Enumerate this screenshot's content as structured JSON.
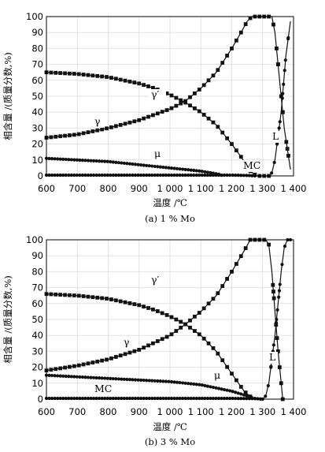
{
  "chart_data": [
    {
      "type": "line",
      "caption": "(a) 1 % Mo",
      "xlabel": "温度 /℃",
      "ylabel": "相含量 /(质量分数,%)",
      "xlim": [
        600,
        1400
      ],
      "ylim": [
        0,
        100
      ],
      "x_ticks": [
        "600",
        "700",
        "800",
        "900",
        "1 000",
        "1 100",
        "1 200",
        "1 300",
        "1 400"
      ],
      "y_ticks": [
        "0",
        "10",
        "20",
        "30",
        "40",
        "50",
        "60",
        "70",
        "80",
        "90",
        "100"
      ],
      "grid": true,
      "series": [
        {
          "name": "γ′",
          "marker": "square",
          "x": [
            600,
            700,
            800,
            900,
            950,
            1000,
            1050,
            1100,
            1150,
            1200,
            1230,
            1260,
            1280,
            1310,
            1330
          ],
          "y": [
            65,
            64,
            62,
            58,
            55,
            51,
            46,
            40,
            32,
            20,
            12,
            3,
            0,
            0,
            0
          ]
        },
        {
          "name": "γ",
          "marker": "square",
          "x": [
            600,
            700,
            800,
            900,
            1000,
            1050,
            1100,
            1150,
            1200,
            1230,
            1250,
            1265,
            1280,
            1300,
            1320,
            1330,
            1340,
            1355,
            1370,
            1390
          ],
          "y": [
            24,
            26,
            30,
            35,
            42,
            47,
            55,
            65,
            80,
            90,
            97,
            100,
            100,
            100,
            100,
            100,
            90,
            60,
            30,
            4
          ]
        },
        {
          "name": "μ",
          "marker": "circle",
          "x": [
            600,
            700,
            800,
            900,
            1000,
            1100,
            1160,
            1170,
            1175
          ],
          "y": [
            11,
            10,
            9,
            7,
            5,
            3,
            1,
            0.2,
            0
          ]
        },
        {
          "name": "MC",
          "marker": "circle",
          "x": [
            600,
            800,
            1000,
            1200,
            1250,
            1280
          ],
          "y": [
            0.5,
            0.5,
            0.5,
            0.5,
            0.3,
            0
          ]
        },
        {
          "name": "L",
          "marker": "circle",
          "x": [
            1320,
            1330,
            1340,
            1360,
            1375,
            1390
          ],
          "y": [
            0,
            2,
            10,
            40,
            75,
            97
          ]
        }
      ],
      "annotations": [
        "γ′",
        "γ",
        "μ",
        "MC",
        "L"
      ]
    },
    {
      "type": "line",
      "caption": "(b) 3 % Mo",
      "xlabel": "温度 /℃",
      "ylabel": "相含量 /(质量分数,%)",
      "xlim": [
        600,
        1400
      ],
      "ylim": [
        0,
        100
      ],
      "x_ticks": [
        "600",
        "700",
        "800",
        "900",
        "1 000",
        "1 100",
        "1 200",
        "1 300",
        "1 400"
      ],
      "y_ticks": [
        "0",
        "10",
        "20",
        "30",
        "40",
        "50",
        "60",
        "70",
        "80",
        "90",
        "100"
      ],
      "grid": true,
      "series": [
        {
          "name": "γ′",
          "marker": "square",
          "x": [
            600,
            700,
            800,
            900,
            950,
            1000,
            1050,
            1100,
            1150,
            1200,
            1240,
            1270
          ],
          "y": [
            66,
            65,
            63,
            59,
            56,
            52,
            47,
            40,
            30,
            16,
            5,
            0
          ]
        },
        {
          "name": "γ",
          "marker": "square",
          "x": [
            600,
            700,
            800,
            900,
            1000,
            1050,
            1100,
            1150,
            1200,
            1240,
            1260,
            1270,
            1290,
            1310,
            1320,
            1330,
            1340,
            1350,
            1365
          ],
          "y": [
            18,
            21,
            25,
            31,
            40,
            47,
            55,
            65,
            80,
            93,
            100,
            100,
            100,
            100,
            97,
            80,
            55,
            30,
            0
          ]
        },
        {
          "name": "μ",
          "marker": "circle",
          "x": [
            600,
            700,
            800,
            900,
            1000,
            1100,
            1200,
            1250,
            1270,
            1300
          ],
          "y": [
            15,
            14,
            13,
            12,
            11,
            9,
            5,
            2,
            0.5,
            0
          ]
        },
        {
          "name": "MC",
          "marker": "circle",
          "x": [
            600,
            800,
            1000,
            1200,
            1280,
            1300
          ],
          "y": [
            0.5,
            0.5,
            0.5,
            0.5,
            0.3,
            0
          ]
        },
        {
          "name": "L",
          "marker": "circle",
          "x": [
            1300,
            1310,
            1320,
            1340,
            1360,
            1370,
            1380,
            1390
          ],
          "y": [
            0,
            2,
            10,
            40,
            80,
            95,
            100,
            100
          ]
        }
      ],
      "annotations": [
        "γ′",
        "γ",
        "μ",
        "MC",
        "L"
      ]
    }
  ]
}
